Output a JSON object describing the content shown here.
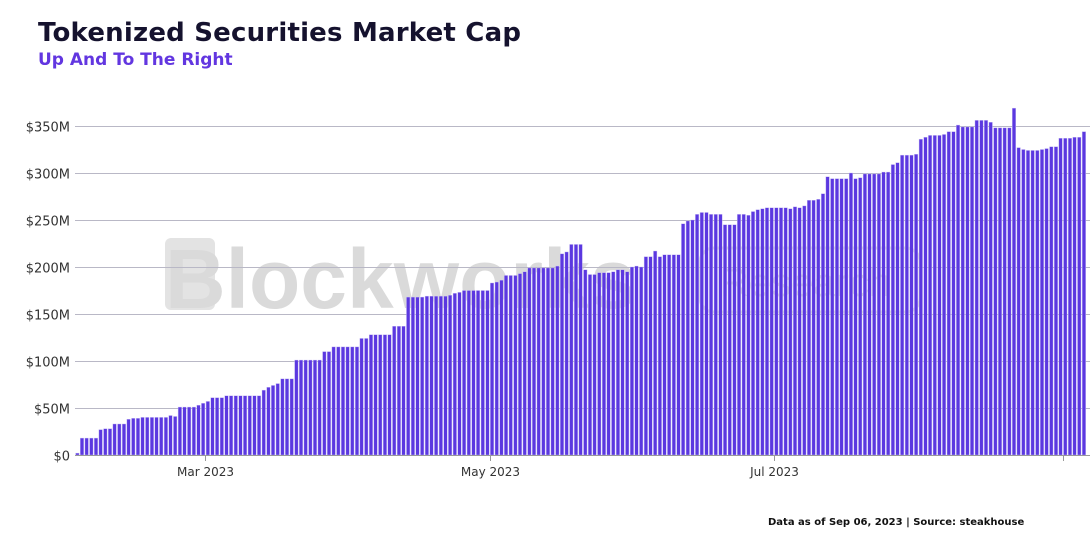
{
  "header": {
    "title": "Tokenized Securities Market Cap",
    "subtitle": "Up And To The Right"
  },
  "watermark": {
    "brand": "Blockworks",
    "tag": "Research"
  },
  "footer": {
    "note": "Data as of Sep 06, 2023 | Source: steakhouse"
  },
  "colors": {
    "bar": "#5b38e0",
    "title": "#15122e",
    "subtitle": "#6236e0",
    "grid": "#b9b8c6"
  },
  "chart_data": {
    "type": "bar",
    "title": "Tokenized Securities Market Cap",
    "subtitle": "Up And To The Right",
    "xlabel": "",
    "ylabel": "",
    "ylim": [
      0,
      350
    ],
    "y_unit": "$M",
    "grid": true,
    "y_ticks": [
      {
        "value": 0,
        "label": "$0"
      },
      {
        "value": 50,
        "label": "$50M"
      },
      {
        "value": 100,
        "label": "$100M"
      },
      {
        "value": 150,
        "label": "$150M"
      },
      {
        "value": 200,
        "label": "$200M"
      },
      {
        "value": 250,
        "label": "$250M"
      },
      {
        "value": 300,
        "label": "$300M"
      },
      {
        "value": 350,
        "label": "$350M"
      }
    ],
    "x_ticks": [
      {
        "date": "2023-03-01",
        "label": "Mar 2023"
      },
      {
        "date": "2023-05-01",
        "label": "May 2023"
      },
      {
        "date": "2023-07-01",
        "label": "Jul 2023"
      },
      {
        "date": "2023-09-01",
        "label": ""
      }
    ],
    "x": [
      "2023-02-01",
      "2023-02-02",
      "2023-02-03",
      "2023-02-04",
      "2023-02-05",
      "2023-02-06",
      "2023-02-07",
      "2023-02-08",
      "2023-02-09",
      "2023-02-10",
      "2023-02-11",
      "2023-02-12",
      "2023-02-13",
      "2023-02-14",
      "2023-02-15",
      "2023-02-16",
      "2023-02-17",
      "2023-02-18",
      "2023-02-19",
      "2023-02-20",
      "2023-02-21",
      "2023-02-22",
      "2023-02-23",
      "2023-02-24",
      "2023-02-25",
      "2023-02-26",
      "2023-02-27",
      "2023-02-28",
      "2023-03-01",
      "2023-03-02",
      "2023-03-03",
      "2023-03-04",
      "2023-03-05",
      "2023-03-06",
      "2023-03-07",
      "2023-03-08",
      "2023-03-09",
      "2023-03-10",
      "2023-03-11",
      "2023-03-12",
      "2023-03-13",
      "2023-03-14",
      "2023-03-15",
      "2023-03-16",
      "2023-03-17",
      "2023-03-18",
      "2023-03-19",
      "2023-03-20",
      "2023-03-21",
      "2023-03-22",
      "2023-03-23",
      "2023-03-24",
      "2023-03-25",
      "2023-03-26",
      "2023-03-27",
      "2023-03-28",
      "2023-03-29",
      "2023-03-30",
      "2023-03-31",
      "2023-04-01",
      "2023-04-02",
      "2023-04-03",
      "2023-04-04",
      "2023-04-05",
      "2023-04-06",
      "2023-04-07",
      "2023-04-08",
      "2023-04-09",
      "2023-04-10",
      "2023-04-11",
      "2023-04-12",
      "2023-04-13",
      "2023-04-14",
      "2023-04-15",
      "2023-04-16",
      "2023-04-17",
      "2023-04-18",
      "2023-04-19",
      "2023-04-20",
      "2023-04-21",
      "2023-04-22",
      "2023-04-23",
      "2023-04-24",
      "2023-04-25",
      "2023-04-26",
      "2023-04-27",
      "2023-04-28",
      "2023-04-29",
      "2023-04-30",
      "2023-05-01",
      "2023-05-02",
      "2023-05-03",
      "2023-05-04",
      "2023-05-05",
      "2023-05-06",
      "2023-05-07",
      "2023-05-08",
      "2023-05-09",
      "2023-05-10",
      "2023-05-11",
      "2023-05-12",
      "2023-05-13",
      "2023-05-14",
      "2023-05-15",
      "2023-05-16",
      "2023-05-17",
      "2023-05-18",
      "2023-05-19",
      "2023-05-20",
      "2023-05-21",
      "2023-05-22",
      "2023-05-23",
      "2023-05-24",
      "2023-05-25",
      "2023-05-26",
      "2023-05-27",
      "2023-05-28",
      "2023-05-29",
      "2023-05-30",
      "2023-05-31",
      "2023-06-01",
      "2023-06-02",
      "2023-06-03",
      "2023-06-04",
      "2023-06-05",
      "2023-06-06",
      "2023-06-07",
      "2023-06-08",
      "2023-06-09",
      "2023-06-10",
      "2023-06-11",
      "2023-06-12",
      "2023-06-13",
      "2023-06-14",
      "2023-06-15",
      "2023-06-16",
      "2023-06-17",
      "2023-06-18",
      "2023-06-19",
      "2023-06-20",
      "2023-06-21",
      "2023-06-22",
      "2023-06-23",
      "2023-06-24",
      "2023-06-25",
      "2023-06-26",
      "2023-06-27",
      "2023-06-28",
      "2023-06-29",
      "2023-06-30",
      "2023-07-01",
      "2023-07-02",
      "2023-07-03",
      "2023-07-04",
      "2023-07-05",
      "2023-07-06",
      "2023-07-07",
      "2023-07-08",
      "2023-07-09",
      "2023-07-10",
      "2023-07-11",
      "2023-07-12",
      "2023-07-13",
      "2023-07-14",
      "2023-07-15",
      "2023-07-16",
      "2023-07-17",
      "2023-07-18",
      "2023-07-19",
      "2023-07-20",
      "2023-07-21",
      "2023-07-22",
      "2023-07-23",
      "2023-07-24",
      "2023-07-25",
      "2023-07-26",
      "2023-07-27",
      "2023-07-28",
      "2023-07-29",
      "2023-07-30",
      "2023-07-31",
      "2023-08-01",
      "2023-08-02",
      "2023-08-03",
      "2023-08-04",
      "2023-08-05",
      "2023-08-06",
      "2023-08-07",
      "2023-08-08",
      "2023-08-09",
      "2023-08-10",
      "2023-08-11",
      "2023-08-12",
      "2023-08-13",
      "2023-08-14",
      "2023-08-15",
      "2023-08-16",
      "2023-08-17",
      "2023-08-18",
      "2023-08-19",
      "2023-08-20",
      "2023-08-21",
      "2023-08-22",
      "2023-08-23",
      "2023-08-24",
      "2023-08-25",
      "2023-08-26",
      "2023-08-27",
      "2023-08-28",
      "2023-08-29",
      "2023-08-30",
      "2023-08-31",
      "2023-09-01",
      "2023-09-02",
      "2023-09-03",
      "2023-09-04",
      "2023-09-05"
    ],
    "values": [
      2,
      18,
      18,
      18,
      18,
      27,
      28,
      28,
      33,
      33,
      33,
      38,
      39,
      39,
      40,
      40,
      40,
      40,
      40,
      40,
      42,
      41,
      51,
      51,
      51,
      51,
      53,
      55,
      57,
      61,
      61,
      61,
      63,
      63,
      63,
      63,
      63,
      63,
      63,
      63,
      69,
      72,
      74,
      76,
      81,
      81,
      81,
      101,
      101,
      101,
      101,
      101,
      101,
      110,
      110,
      115,
      115,
      115,
      115,
      115,
      115,
      124,
      124,
      128,
      128,
      128,
      128,
      128,
      137,
      137,
      137,
      168,
      168,
      168,
      168,
      169,
      169,
      169,
      169,
      169,
      170,
      172,
      173,
      175,
      175,
      175,
      175,
      175,
      175,
      183,
      184,
      186,
      191,
      191,
      191,
      193,
      195,
      199,
      199,
      199,
      199,
      199,
      199,
      201,
      214,
      216,
      224,
      224,
      224,
      197,
      192,
      192,
      194,
      194,
      194,
      195,
      197,
      197,
      195,
      200,
      201,
      200,
      211,
      211,
      217,
      211,
      213,
      213,
      213,
      213,
      246,
      249,
      250,
      256,
      258,
      258,
      256,
      256,
      256,
      245,
      245,
      245,
      256,
      256,
      255,
      259,
      261,
      262,
      263,
      263,
      263,
      263,
      263,
      262,
      264,
      263,
      265,
      271,
      271,
      272,
      278,
      296,
      294,
      294,
      294,
      294,
      300,
      294,
      295,
      299,
      299,
      299,
      299,
      301,
      301,
      309,
      311,
      319,
      319,
      319,
      320,
      336,
      338,
      340,
      340,
      340,
      341,
      344,
      344,
      351,
      349,
      349,
      349,
      356,
      356,
      356,
      354,
      348,
      348,
      348,
      348,
      369,
      327,
      325,
      324,
      324,
      324,
      325,
      326,
      328,
      328,
      337,
      337,
      337,
      338,
      338,
      344
    ]
  }
}
